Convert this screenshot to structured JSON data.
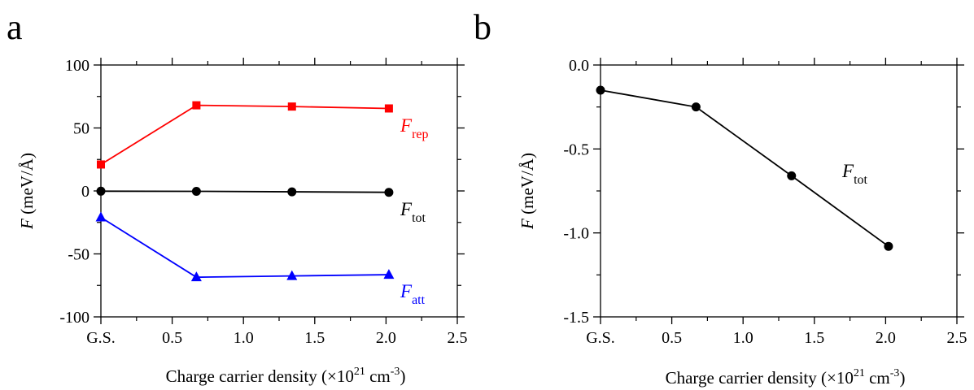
{
  "chart_data": [
    {
      "panel_label": "a",
      "type": "line",
      "xlabel": "Charge carrier density (×10",
      "xlabel_sup": "21",
      "xlabel_mid": " cm",
      "xlabel_sup2": "-3",
      "xlabel_end": ")",
      "ylabel_italic": "F",
      "ylabel": " (meV/Å)",
      "xlim": [
        0,
        2.5
      ],
      "ylim": [
        -100,
        100
      ],
      "xticks": [
        0,
        0.5,
        1.0,
        1.5,
        2.0,
        2.5
      ],
      "xtick_labels": [
        "G.S.",
        "0.5",
        "1.0",
        "1.5",
        "2.0",
        "2.5"
      ],
      "yticks": [
        100,
        50,
        0,
        -50,
        -100
      ],
      "ytick_labels": [
        "100",
        "50",
        "0",
        "-50",
        "-100"
      ],
      "grid": false,
      "series": [
        {
          "label_main": "F",
          "label_sub": "rep",
          "color": "#ff0000",
          "marker": "square",
          "x": [
            0,
            0.67,
            1.34,
            2.02
          ],
          "values": [
            21,
            68,
            67,
            65.5
          ]
        },
        {
          "label_main": "F",
          "label_sub": "tot",
          "color": "#000000",
          "marker": "circle",
          "x": [
            0,
            0.67,
            1.34,
            2.02
          ],
          "values": [
            -0.2,
            -0.3,
            -0.7,
            -1.1
          ]
        },
        {
          "label_main": "F",
          "label_sub": "att",
          "color": "#0000ff",
          "marker": "triangle",
          "x": [
            0,
            0.67,
            1.34,
            2.02
          ],
          "values": [
            -21,
            -68.5,
            -67.5,
            -66.5
          ]
        }
      ]
    },
    {
      "panel_label": "b",
      "type": "line",
      "xlabel": "Charge carrier density (×10",
      "xlabel_sup": "21",
      "xlabel_mid": " cm",
      "xlabel_sup2": "-3",
      "xlabel_end": ")",
      "ylabel_italic": "F",
      "ylabel": " (meV/Å)",
      "xlim": [
        0,
        2.5
      ],
      "ylim": [
        -1.5,
        0.0
      ],
      "xticks": [
        0,
        0.5,
        1.0,
        1.5,
        2.0,
        2.5
      ],
      "xtick_labels": [
        "G.S.",
        "0.5",
        "1.0",
        "1.5",
        "2.0",
        "2.5"
      ],
      "yticks": [
        0.0,
        -0.5,
        -1.0,
        -1.5
      ],
      "ytick_labels": [
        "0.0",
        "-0.5",
        "-1.0",
        "-1.5"
      ],
      "grid": false,
      "series": [
        {
          "label_main": "F",
          "label_sub": "tot",
          "color": "#000000",
          "marker": "circle",
          "x": [
            0,
            0.67,
            1.34,
            2.02
          ],
          "values": [
            -0.15,
            -0.25,
            -0.66,
            -1.08
          ]
        }
      ]
    }
  ]
}
